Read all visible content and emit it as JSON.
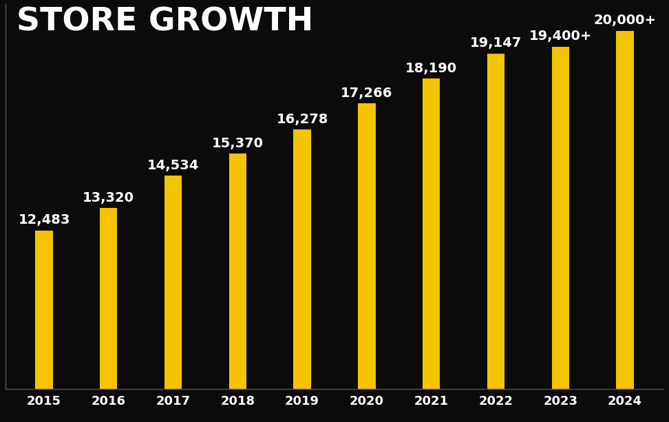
{
  "chart_data": {
    "type": "bar",
    "title": "STORE GROWTH",
    "categories": [
      "2015",
      "2016",
      "2017",
      "2018",
      "2019",
      "2020",
      "2021",
      "2022",
      "2023",
      "2024"
    ],
    "values": [
      12483,
      13320,
      14534,
      15370,
      16278,
      17266,
      18190,
      19147,
      19400,
      20000
    ],
    "value_labels": [
      "12,483",
      "13,320",
      "14,534",
      "15,370",
      "16,278",
      "17,266",
      "18,190",
      "19,147",
      "19,400+",
      "20,000+"
    ],
    "color": "#f5c400",
    "ylim": [
      6500,
      21000
    ],
    "data_labels": true,
    "tick_labels": "x"
  }
}
